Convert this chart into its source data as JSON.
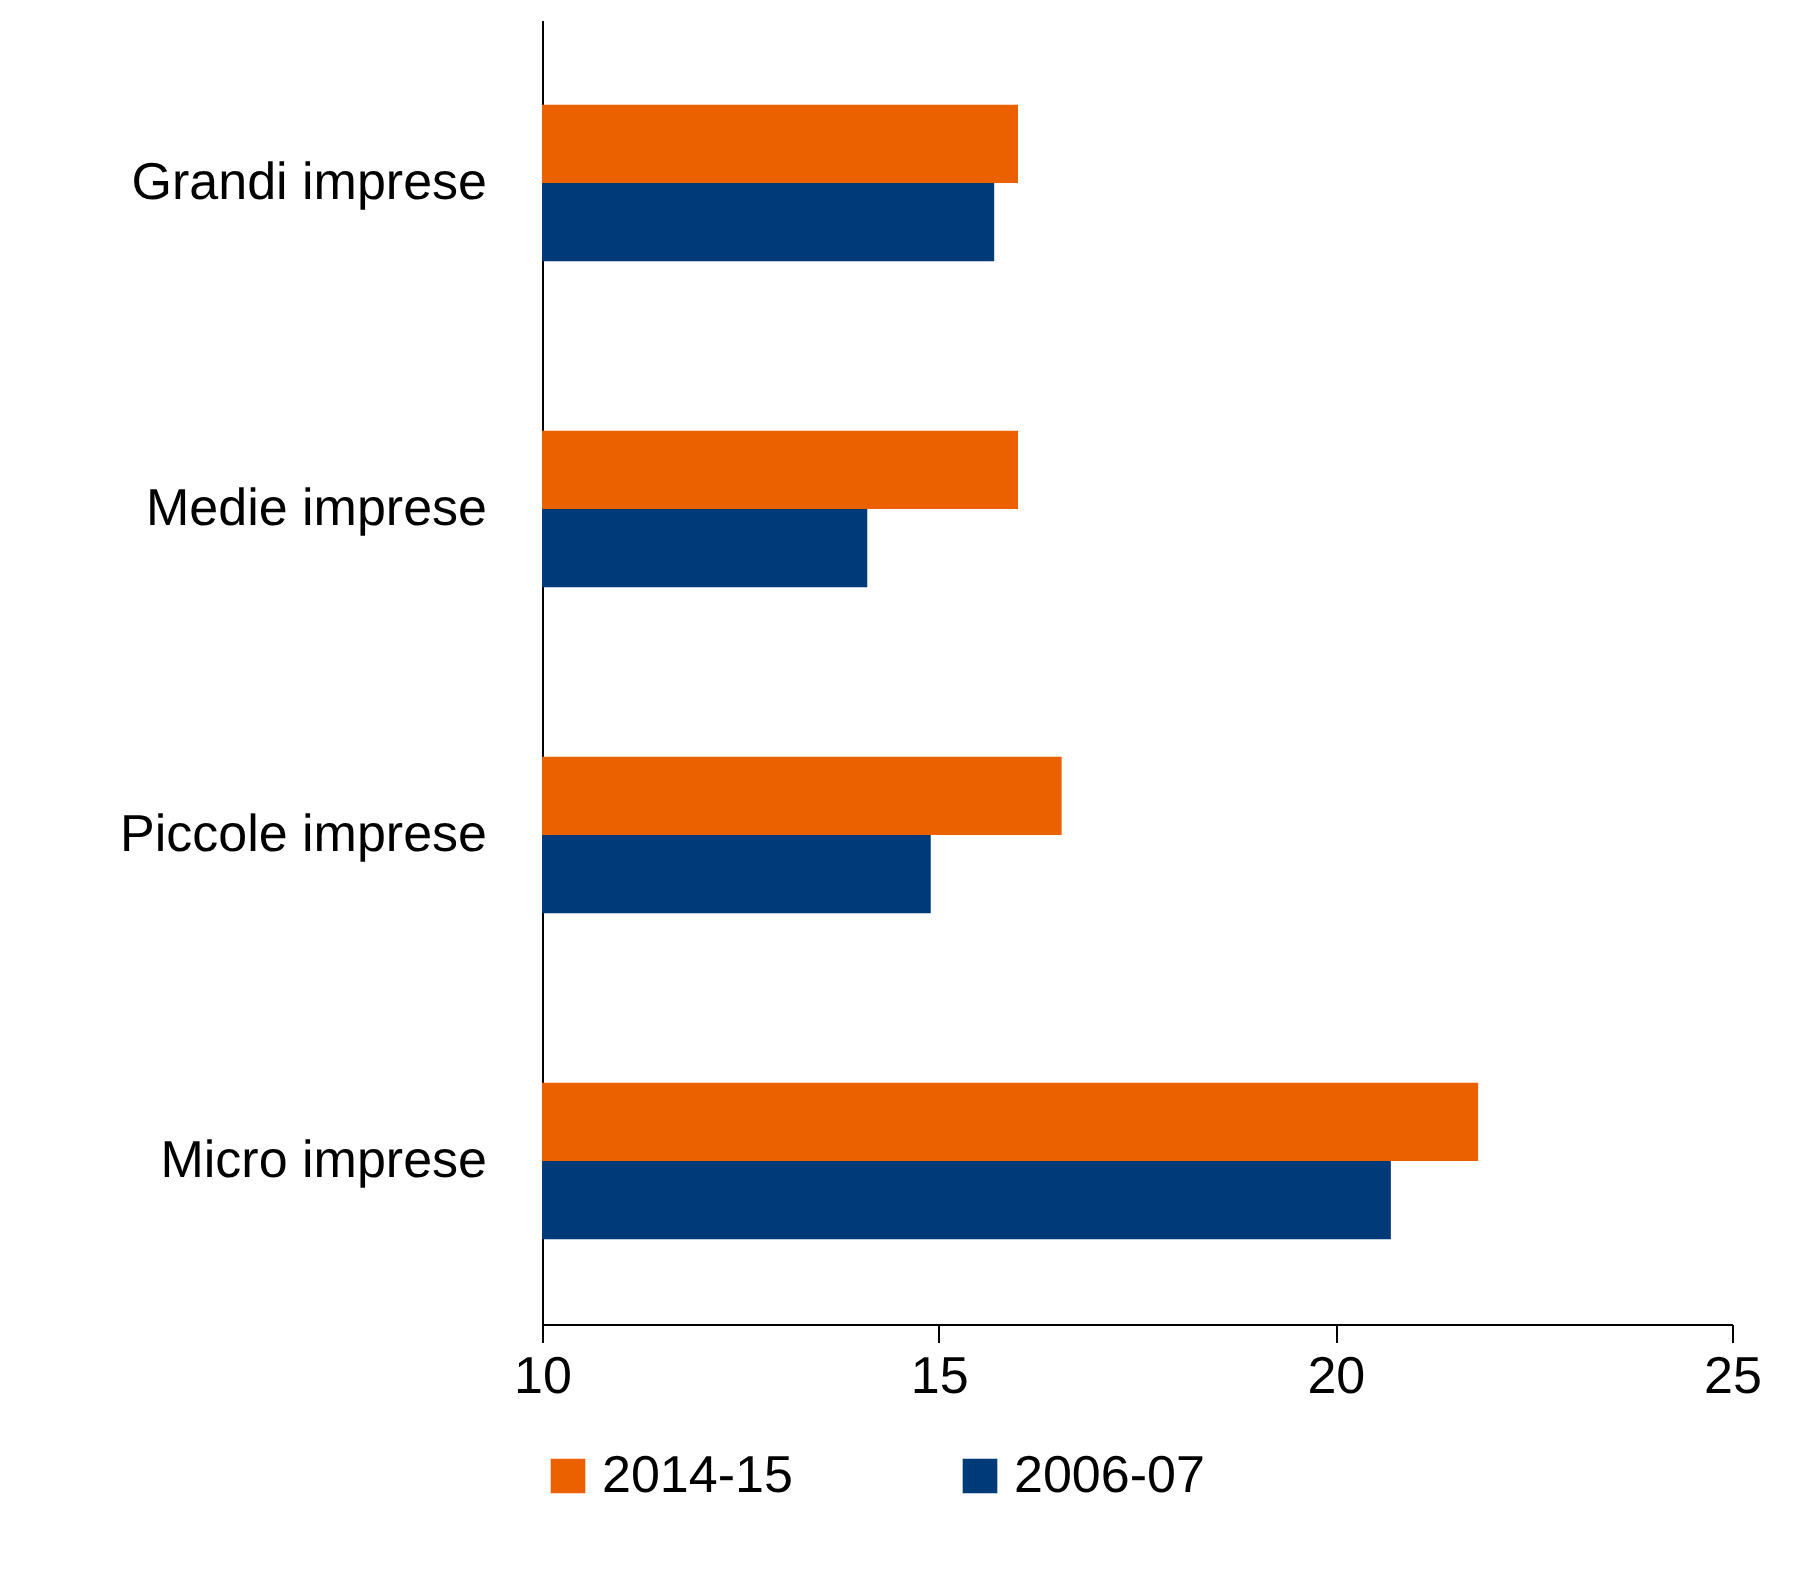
{
  "chart_data": {
    "type": "bar",
    "orientation": "horizontal",
    "categories": [
      "Grandi imprese",
      "Medie imprese",
      "Piccole imprese",
      "Micro imprese"
    ],
    "series": [
      {
        "name": "2014-15",
        "color": "#eb6100",
        "values": [
          16.0,
          16.0,
          16.55,
          21.8
        ]
      },
      {
        "name": "2006-07",
        "color": "#003a78",
        "values": [
          15.7,
          14.1,
          14.9,
          20.7
        ]
      }
    ],
    "xlim": [
      10,
      25
    ],
    "xticks": [
      10,
      15,
      20,
      25
    ],
    "grid": false,
    "legend": "bottom"
  }
}
